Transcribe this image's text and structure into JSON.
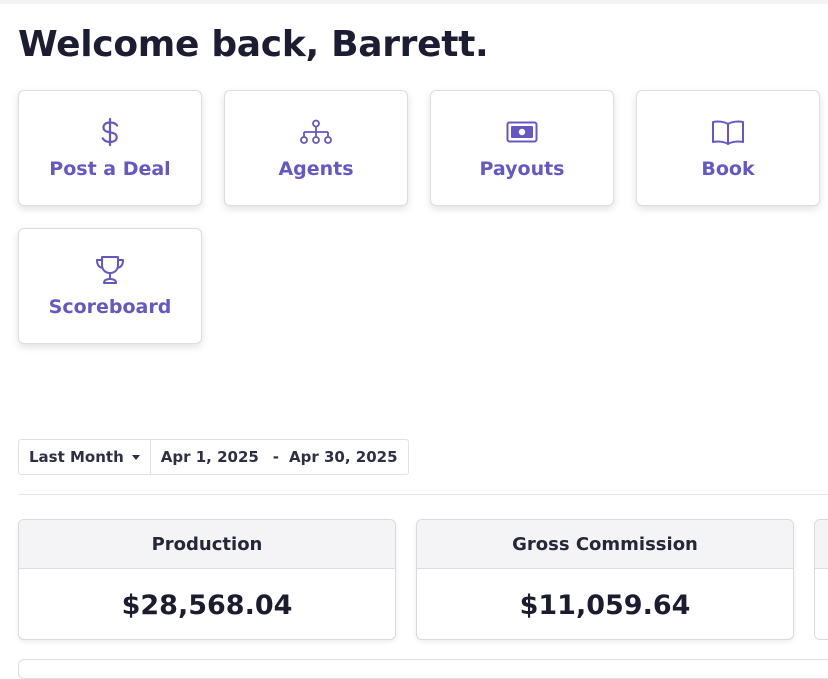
{
  "header": {
    "welcome": "Welcome back, Barrett."
  },
  "quick_actions": [
    {
      "label": "Post a Deal",
      "icon": "dollar-icon"
    },
    {
      "label": "Agents",
      "icon": "org-chart-icon"
    },
    {
      "label": "Payouts",
      "icon": "money-bill-icon"
    },
    {
      "label": "Book",
      "icon": "book-open-icon"
    },
    {
      "label": "Scoreboard",
      "icon": "trophy-icon"
    }
  ],
  "filters": {
    "preset": "Last Month",
    "start_date": "Apr 1, 2025",
    "separator": "-",
    "end_date": "Apr 30, 2025"
  },
  "stats": [
    {
      "label": "Production",
      "value": "$28,568.04"
    },
    {
      "label": "Gross Commission",
      "value": "$11,059.64"
    }
  ],
  "colors": {
    "accent": "#6458c4",
    "heading": "#1c1d33",
    "stat_header_bg": "#f4f4f6"
  }
}
